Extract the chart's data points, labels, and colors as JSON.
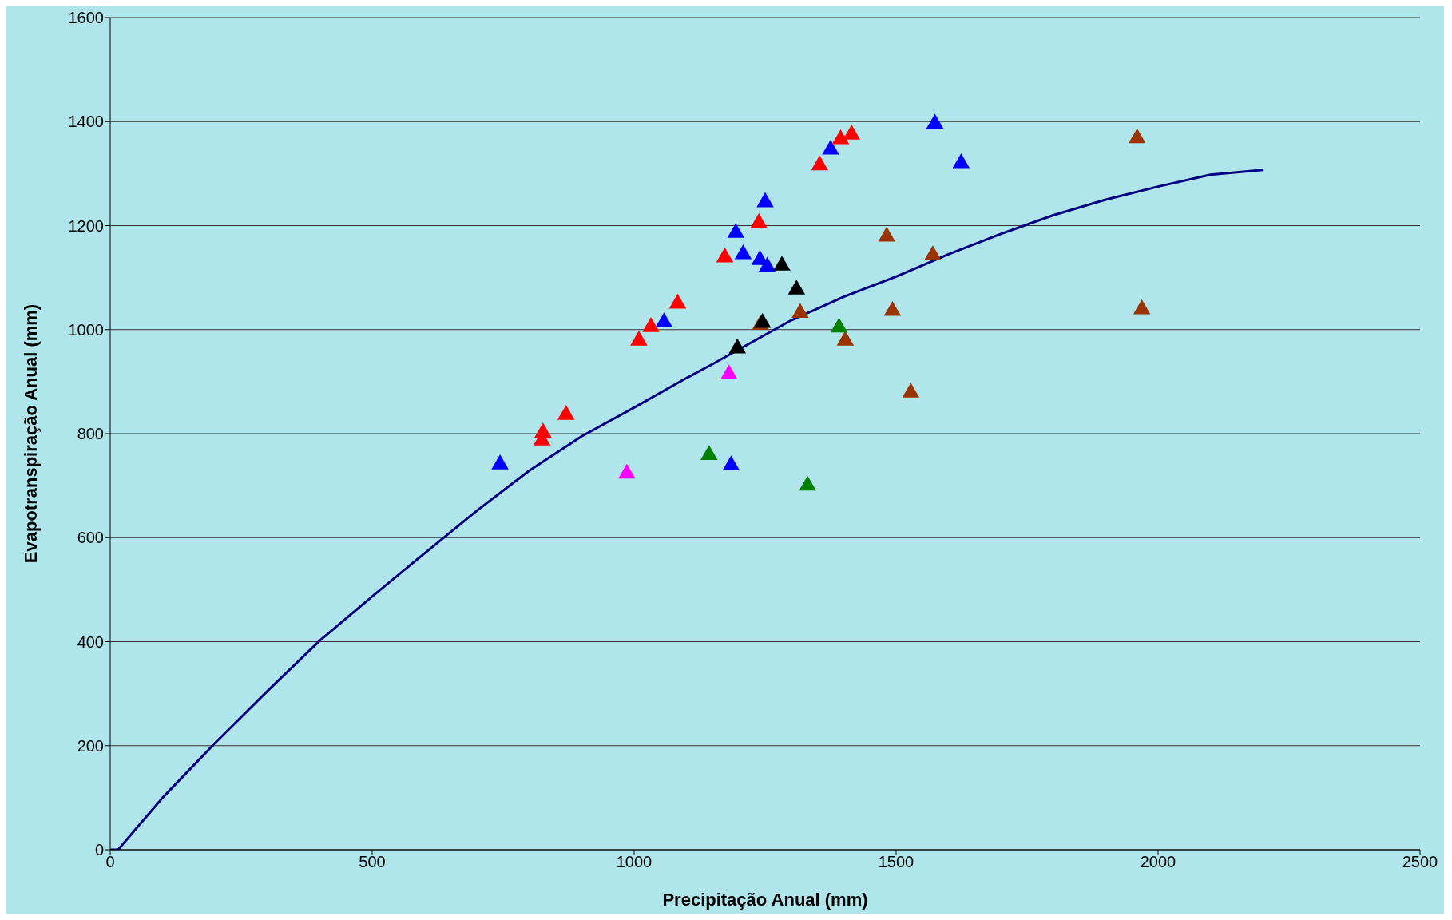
{
  "chart_data": {
    "type": "scatter",
    "xlabel": "Precipitação Anual (mm)",
    "ylabel": "Evapotranspiração Anual (mm)",
    "xlim": [
      0,
      2500
    ],
    "xticks": [
      0,
      500,
      1000,
      1500,
      2000,
      2500
    ],
    "ylim": [
      0,
      1600
    ],
    "yticks": [
      0,
      200,
      400,
      600,
      800,
      1000,
      1200,
      1400,
      1600
    ],
    "grid": "y",
    "marker": "triangle",
    "series": [
      {
        "color": "#0000ff",
        "x": [
          744,
          1057,
          1194,
          1208,
          1240,
          1254,
          1250,
          1375,
          1574,
          1624,
          1185
        ],
        "values": [
          741,
          1014,
          1186,
          1145,
          1134,
          1121,
          1245,
          1346,
          1396,
          1320,
          739
        ]
      },
      {
        "color": "#ff0000",
        "x": [
          824,
          826,
          870,
          1009,
          1032,
          1083,
          1173,
          1238,
          1354,
          1394,
          1415
        ],
        "values": [
          787,
          802,
          836,
          979,
          1005,
          1050,
          1139,
          1205,
          1316,
          1366,
          1375
        ]
      },
      {
        "color": "#993300",
        "x": [
          1241,
          1317,
          1403,
          1482,
          1493,
          1528,
          1570,
          1960,
          1969
        ],
        "values": [
          1009,
          1032,
          979,
          1179,
          1036,
          879,
          1143,
          1368,
          1039
        ]
      },
      {
        "color": "#000000",
        "x": [
          1197,
          1245,
          1282,
          1310
        ],
        "values": [
          964,
          1013,
          1123,
          1077
        ]
      },
      {
        "color": "#008000",
        "x": [
          1143,
          1331,
          1391
        ],
        "values": [
          759,
          700,
          1004
        ]
      },
      {
        "color": "#ff00ff",
        "x": [
          986,
          1181
        ],
        "values": [
          723,
          914
        ]
      },
      {
        "type": "line",
        "color": "#000080",
        "marker": "none",
        "line_style": "solid",
        "x": [
          0,
          15,
          100,
          200,
          300,
          400,
          500,
          600,
          700,
          800,
          900,
          1000,
          1100,
          1150,
          1300,
          1400,
          1500,
          1600,
          1700,
          1800,
          1900,
          2000,
          2100,
          2200
        ],
        "values": [
          0,
          0,
          100,
          205,
          305,
          402,
          487,
          570,
          652,
          729,
          795,
          850,
          907,
          934,
          1018,
          1063,
          1102,
          1145,
          1184,
          1220,
          1250,
          1275,
          1298,
          1307
        ]
      }
    ]
  }
}
